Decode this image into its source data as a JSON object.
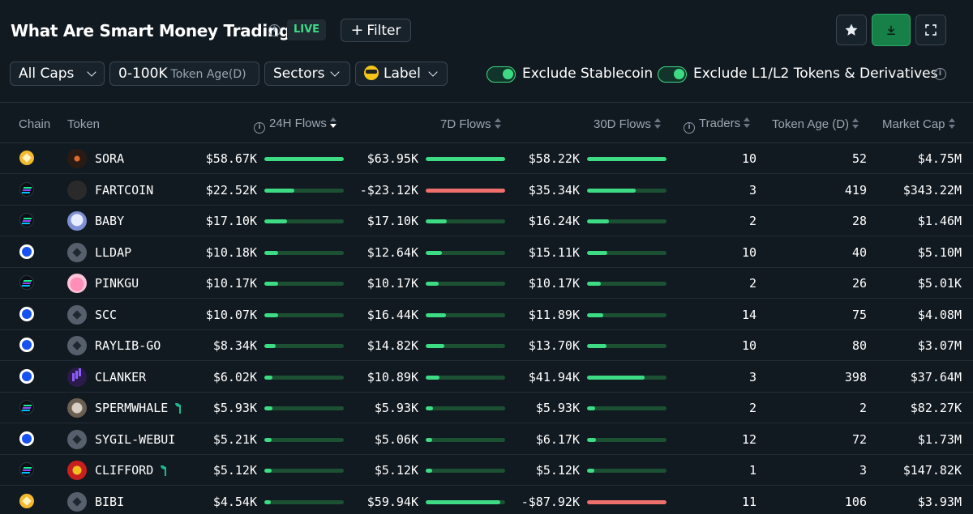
{
  "header": {
    "title": "What Are Smart Money Trading?",
    "live": "LIVE",
    "filter": "Filter"
  },
  "toolbar": {
    "caps": "All Caps",
    "age_range": "0-100K",
    "age_label": "Token Age(D)",
    "sectors": "Sectors",
    "label": "Label",
    "exclude_stablecoin": "Exclude Stablecoin",
    "exclude_l1l2": "Exclude L1/L2 Tokens & Derivatives"
  },
  "table": {
    "headers": {
      "chain": "Chain",
      "token": "Token",
      "flows_24h": "24H Flows",
      "flows_7d": "7D Flows",
      "flows_30d": "30D Flows",
      "traders": "Traders",
      "age": "Token Age (D)",
      "mcap": "Market Cap"
    },
    "rows": [
      {
        "chain": "bnb",
        "icon": "sora",
        "token": "SORA",
        "f24": "$58.67K",
        "f24p": 1.0,
        "f7": "$63.95K",
        "f7p": 1.0,
        "f7neg": false,
        "f30": "$58.22K",
        "f30p": 1.0,
        "f30neg": false,
        "traders": "10",
        "age": "52",
        "mcap": "$4.75M",
        "sprout": false
      },
      {
        "chain": "sol",
        "icon": "fart",
        "token": "FARTCOIN",
        "f24": "$22.52K",
        "f24p": 0.38,
        "f7": "-$23.12K",
        "f7p": 1.0,
        "f7neg": true,
        "f30": "$35.34K",
        "f30p": 0.61,
        "f30neg": false,
        "traders": "3",
        "age": "419",
        "mcap": "$343.22M",
        "sprout": false
      },
      {
        "chain": "sol",
        "icon": "baby",
        "token": "BABY",
        "f24": "$17.10K",
        "f24p": 0.29,
        "f7": "$17.10K",
        "f7p": 0.27,
        "f7neg": false,
        "f30": "$16.24K",
        "f30p": 0.28,
        "f30neg": false,
        "traders": "2",
        "age": "28",
        "mcap": "$1.46M",
        "sprout": false
      },
      {
        "chain": "base",
        "icon": "gray",
        "token": "LLDAP",
        "f24": "$10.18K",
        "f24p": 0.17,
        "f7": "$12.64K",
        "f7p": 0.2,
        "f7neg": false,
        "f30": "$15.11K",
        "f30p": 0.26,
        "f30neg": false,
        "traders": "10",
        "age": "40",
        "mcap": "$5.10M",
        "sprout": false
      },
      {
        "chain": "sol",
        "icon": "pink",
        "token": "PINKGU",
        "f24": "$10.17K",
        "f24p": 0.17,
        "f7": "$10.17K",
        "f7p": 0.16,
        "f7neg": false,
        "f30": "$10.17K",
        "f30p": 0.17,
        "f30neg": false,
        "traders": "2",
        "age": "26",
        "mcap": "$5.01K",
        "sprout": false
      },
      {
        "chain": "base",
        "icon": "gray",
        "token": "SCC",
        "f24": "$10.07K",
        "f24p": 0.17,
        "f7": "$16.44K",
        "f7p": 0.26,
        "f7neg": false,
        "f30": "$11.89K",
        "f30p": 0.2,
        "f30neg": false,
        "traders": "14",
        "age": "75",
        "mcap": "$4.08M",
        "sprout": false
      },
      {
        "chain": "base",
        "icon": "gray",
        "token": "RAYLIB-GO",
        "f24": "$8.34K",
        "f24p": 0.14,
        "f7": "$14.82K",
        "f7p": 0.23,
        "f7neg": false,
        "f30": "$13.70K",
        "f30p": 0.24,
        "f30neg": false,
        "traders": "10",
        "age": "80",
        "mcap": "$3.07M",
        "sprout": false
      },
      {
        "chain": "base",
        "icon": "clanker",
        "token": "CLANKER",
        "f24": "$6.02K",
        "f24p": 0.1,
        "f7": "$10.89K",
        "f7p": 0.17,
        "f7neg": false,
        "f30": "$41.94K",
        "f30p": 0.72,
        "f30neg": false,
        "traders": "3",
        "age": "398",
        "mcap": "$37.64M",
        "sprout": false
      },
      {
        "chain": "sol",
        "icon": "sperm",
        "token": "SPERMWHALE",
        "f24": "$5.93K",
        "f24p": 0.1,
        "f7": "$5.93K",
        "f7p": 0.09,
        "f7neg": false,
        "f30": "$5.93K",
        "f30p": 0.1,
        "f30neg": false,
        "traders": "2",
        "age": "2",
        "mcap": "$82.27K",
        "sprout": true
      },
      {
        "chain": "base",
        "icon": "gray",
        "token": "SYGIL-WEBUI",
        "f24": "$5.21K",
        "f24p": 0.09,
        "f7": "$5.06K",
        "f7p": 0.08,
        "f7neg": false,
        "f30": "$6.17K",
        "f30p": 0.11,
        "f30neg": false,
        "traders": "12",
        "age": "72",
        "mcap": "$1.73M",
        "sprout": false
      },
      {
        "chain": "sol",
        "icon": "clifford",
        "token": "CLIFFORD",
        "f24": "$5.12K",
        "f24p": 0.09,
        "f7": "$5.12K",
        "f7p": 0.08,
        "f7neg": false,
        "f30": "$5.12K",
        "f30p": 0.09,
        "f30neg": false,
        "traders": "1",
        "age": "3",
        "mcap": "$147.82K",
        "sprout": true
      },
      {
        "chain": "bnb",
        "icon": "gray",
        "token": "BIBI",
        "f24": "$4.54K",
        "f24p": 0.08,
        "f7": "$59.94K",
        "f7p": 0.94,
        "f7neg": false,
        "f30": "-$87.92K",
        "f30p": 1.0,
        "f30neg": true,
        "traders": "11",
        "age": "106",
        "mcap": "$3.93M",
        "sprout": false
      }
    ]
  }
}
